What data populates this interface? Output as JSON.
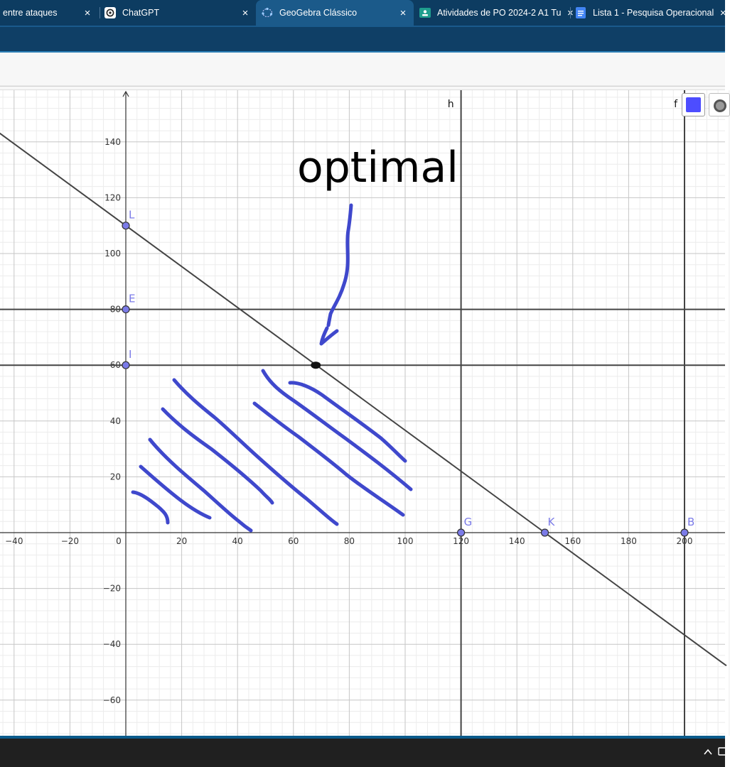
{
  "browser": {
    "tabs": [
      {
        "label": "entre ataques",
        "close": "×",
        "favicon": "partial-tab-icon",
        "active": false
      },
      {
        "label": "ChatGPT",
        "close": "×",
        "favicon": "chatgpt-icon",
        "active": false
      },
      {
        "label": "GeoGebra Clássico",
        "close": "×",
        "favicon": "geogebra-icon",
        "active": true
      },
      {
        "label": "Atividades de PO 2024-2 A1 Tu",
        "close": "×",
        "favicon": "google-classroom-icon",
        "active": false
      },
      {
        "label": "Lista 1 - Pesquisa Operacional",
        "close": "×",
        "favicon": "google-docs-icon",
        "active": false
      }
    ]
  },
  "graph": {
    "x_ticks": [
      -40,
      -20,
      0,
      20,
      40,
      60,
      80,
      100,
      120,
      140,
      160,
      180,
      200
    ],
    "y_ticks": [
      -60,
      -40,
      -20,
      20,
      40,
      60,
      80,
      100,
      120,
      140
    ],
    "x_tick_labels": [
      "−40",
      "−20",
      "0",
      "20",
      "40",
      "60",
      "80",
      "100",
      "120",
      "140",
      "160",
      "180",
      "200"
    ],
    "y_tick_labels": [
      "−60",
      "−40",
      "−20",
      "20",
      "40",
      "60",
      "80",
      "100",
      "120",
      "140"
    ],
    "lines": [
      {
        "kind": "slanted",
        "x_intercept": 150,
        "y_intercept": 110
      },
      {
        "kind": "horizontal",
        "y": 80
      },
      {
        "kind": "horizontal",
        "y": 60
      },
      {
        "kind": "vertical",
        "x": 120
      },
      {
        "kind": "vertical",
        "x": 200
      }
    ],
    "line_labels": [
      {
        "name": "h",
        "x": 120
      },
      {
        "name": "f",
        "x": 200
      }
    ],
    "points": [
      {
        "name": "L",
        "x": 0,
        "y": 110
      },
      {
        "name": "E",
        "x": 0,
        "y": 80
      },
      {
        "name": "I",
        "x": 0,
        "y": 60
      },
      {
        "name": "G",
        "x": 120,
        "y": 0
      },
      {
        "name": "K",
        "x": 150,
        "y": 0
      },
      {
        "name": "B",
        "x": 200,
        "y": 0
      }
    ],
    "optimal_point": {
      "x": 68,
      "y": 60
    },
    "annotation_text": "optimal",
    "ink_color": "#3f48cc",
    "point_color": "#7b7be8",
    "line_color": "#444444"
  },
  "style_bar": {
    "color_swatch": "#4d4dff",
    "point_style_icon": "point-style-icon"
  },
  "taskbar": {
    "tray_icons": [
      "chevron-up-icon",
      "display-icon"
    ]
  }
}
